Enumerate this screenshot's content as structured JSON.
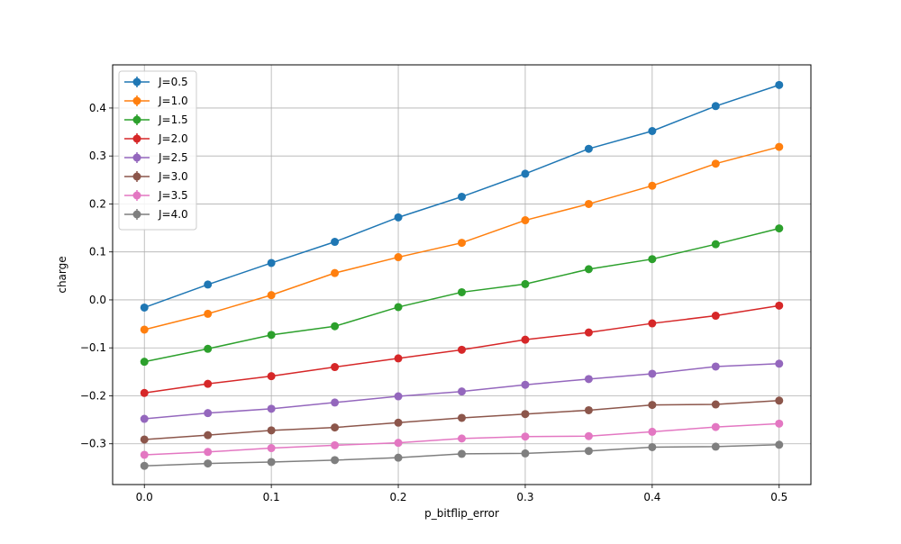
{
  "chart_data": {
    "type": "line",
    "xlabel": "p_bitflip_error",
    "ylabel": "charge",
    "xlim": [
      -0.025,
      0.525
    ],
    "ylim": [
      -0.385,
      0.49
    ],
    "xticks": [
      0.0,
      0.1,
      0.2,
      0.3,
      0.4,
      0.5
    ],
    "xtick_labels": [
      "0.0",
      "0.1",
      "0.2",
      "0.3",
      "0.4",
      "0.5"
    ],
    "yticks": [
      -0.3,
      -0.2,
      -0.1,
      0.0,
      0.1,
      0.2,
      0.3,
      0.4
    ],
    "ytick_labels": [
      "−0.3",
      "−0.2",
      "−0.1",
      "0.0",
      "0.1",
      "0.2",
      "0.3",
      "0.4"
    ],
    "grid": true,
    "legend_position": "top-left",
    "x": [
      0.0,
      0.05,
      0.1,
      0.15,
      0.2,
      0.25,
      0.3,
      0.35,
      0.4,
      0.45,
      0.5
    ],
    "series": [
      {
        "name": "J=0.5",
        "color": "#1f77b4",
        "values": [
          -0.016,
          0.032,
          0.077,
          0.121,
          0.172,
          0.215,
          0.263,
          0.315,
          0.352,
          0.404,
          0.448
        ]
      },
      {
        "name": "J=1.0",
        "color": "#ff7f0e",
        "values": [
          -0.062,
          -0.029,
          0.01,
          0.056,
          0.089,
          0.119,
          0.166,
          0.2,
          0.238,
          0.284,
          0.319
        ]
      },
      {
        "name": "J=1.5",
        "color": "#2ca02c",
        "values": [
          -0.129,
          -0.102,
          -0.073,
          -0.055,
          -0.015,
          0.016,
          0.033,
          0.064,
          0.085,
          0.116,
          0.149
        ]
      },
      {
        "name": "J=2.0",
        "color": "#d62728",
        "values": [
          -0.194,
          -0.175,
          -0.159,
          -0.14,
          -0.122,
          -0.104,
          -0.083,
          -0.068,
          -0.049,
          -0.033,
          -0.012
        ]
      },
      {
        "name": "J=2.5",
        "color": "#9467bd",
        "values": [
          -0.248,
          -0.236,
          -0.227,
          -0.214,
          -0.201,
          -0.191,
          -0.177,
          -0.165,
          -0.154,
          -0.139,
          -0.133
        ]
      },
      {
        "name": "J=3.0",
        "color": "#8c564b",
        "values": [
          -0.291,
          -0.282,
          -0.272,
          -0.266,
          -0.256,
          -0.246,
          -0.238,
          -0.23,
          -0.219,
          -0.218,
          -0.21
        ]
      },
      {
        "name": "J=3.5",
        "color": "#e377c2",
        "values": [
          -0.323,
          -0.317,
          -0.309,
          -0.303,
          -0.298,
          -0.289,
          -0.285,
          -0.284,
          -0.275,
          -0.265,
          -0.258
        ]
      },
      {
        "name": "J=4.0",
        "color": "#7f7f7f",
        "values": [
          -0.346,
          -0.341,
          -0.338,
          -0.334,
          -0.329,
          -0.321,
          -0.32,
          -0.315,
          -0.307,
          -0.306,
          -0.302
        ]
      }
    ]
  }
}
